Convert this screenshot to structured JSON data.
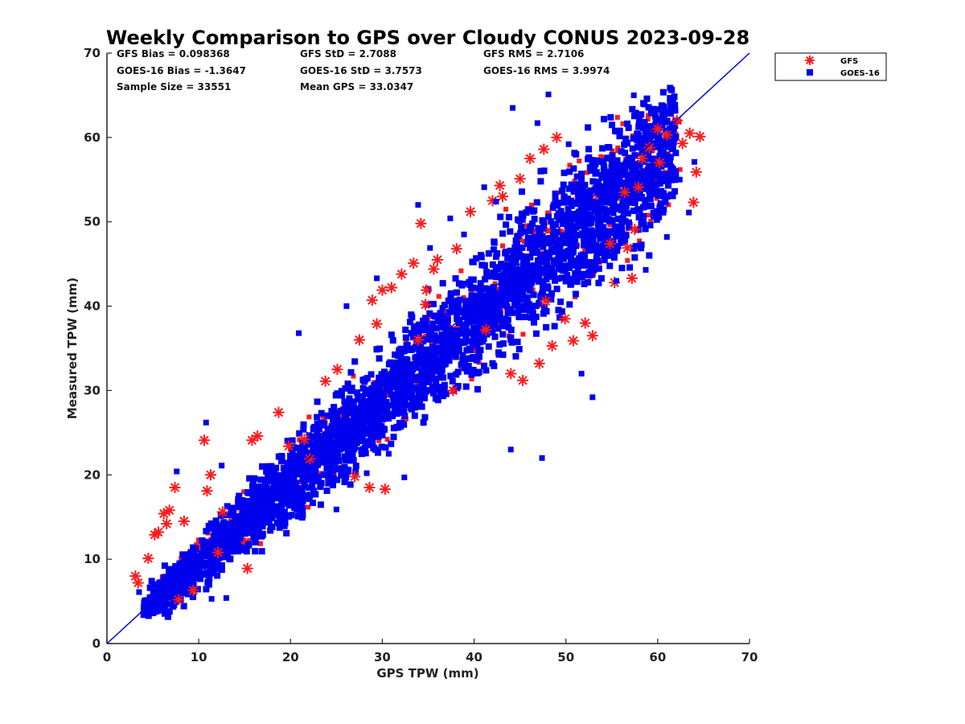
{
  "chart_data": {
    "type": "scatter",
    "title": "Weekly Comparison to GPS over Cloudy CONUS 2023-09-28",
    "xlabel": "GPS TPW (mm)",
    "ylabel": "Measured TPW (mm)",
    "xlim": [
      0,
      70
    ],
    "ylim": [
      0,
      70
    ],
    "xticks": [
      "0",
      "10",
      "20",
      "30",
      "40",
      "50",
      "60",
      "70"
    ],
    "yticks": [
      "0",
      "10",
      "20",
      "30",
      "40",
      "50",
      "60",
      "70"
    ],
    "grid": false,
    "legend_position": "outside-top-right",
    "reference_line": {
      "from": [
        0,
        0
      ],
      "to": [
        70,
        70
      ],
      "color": "#0000dd"
    },
    "stats": {
      "gfs_bias": "GFS Bias = 0.098368",
      "gfs_std": "GFS StD = 2.7088",
      "gfs_rms": "GFS RMS = 2.7106",
      "goes_bias": "GOES-16 Bias = -1.3647",
      "goes_std": "GOES-16 StD = 3.7573",
      "goes_rms": "GOES-16 RMS = 3.9974",
      "sample_size": "Sample Size = 33551",
      "mean_gps": "Mean GPS = 33.0347"
    },
    "series": [
      {
        "name": "GFS",
        "marker": "asterisk",
        "color": "#ff1a1a",
        "points": [
          [
            3.1,
            8.0
          ],
          [
            3.4,
            7.2
          ],
          [
            4.5,
            10.1
          ],
          [
            5.2,
            12.9
          ],
          [
            5.6,
            13.2
          ],
          [
            6.2,
            15.4
          ],
          [
            6.8,
            15.8
          ],
          [
            7.4,
            18.5
          ],
          [
            7.8,
            5.2
          ],
          [
            6.5,
            14.2
          ],
          [
            8.4,
            14.5
          ],
          [
            10.6,
            24.1
          ],
          [
            11.3,
            20.0
          ],
          [
            10.9,
            18.1
          ],
          [
            12.6,
            15.6
          ],
          [
            15.3,
            8.9
          ],
          [
            15.8,
            24.1
          ],
          [
            16.4,
            24.6
          ],
          [
            18.7,
            27.4
          ],
          [
            21.5,
            24.2
          ],
          [
            23.8,
            31.1
          ],
          [
            25.1,
            32.5
          ],
          [
            27.5,
            36.0
          ],
          [
            28.9,
            40.7
          ],
          [
            29.4,
            37.9
          ],
          [
            28.6,
            18.5
          ],
          [
            30.3,
            18.3
          ],
          [
            30.0,
            41.9
          ],
          [
            31.0,
            42.2
          ],
          [
            32.1,
            43.8
          ],
          [
            33.4,
            45.1
          ],
          [
            34.7,
            40.2
          ],
          [
            33.9,
            36.0
          ],
          [
            34.8,
            41.9
          ],
          [
            35.6,
            44.4
          ],
          [
            36.0,
            45.5
          ],
          [
            34.2,
            49.8
          ],
          [
            38.1,
            46.8
          ],
          [
            39.6,
            51.2
          ],
          [
            42.8,
            54.3
          ],
          [
            43.1,
            53.0
          ],
          [
            42.0,
            52.5
          ],
          [
            45.0,
            55.1
          ],
          [
            46.1,
            57.5
          ],
          [
            47.6,
            58.6
          ],
          [
            49.0,
            60.0
          ],
          [
            44.0,
            32.0
          ],
          [
            45.3,
            31.2
          ],
          [
            47.1,
            33.2
          ],
          [
            48.5,
            35.3
          ],
          [
            49.9,
            38.5
          ],
          [
            50.8,
            35.9
          ],
          [
            52.1,
            38.0
          ],
          [
            52.9,
            36.5
          ],
          [
            55.3,
            42.8
          ],
          [
            56.7,
            46.9
          ],
          [
            57.2,
            43.3
          ],
          [
            57.5,
            49.1
          ],
          [
            56.4,
            53.5
          ],
          [
            57.9,
            54.1
          ],
          [
            58.3,
            57.5
          ],
          [
            59.1,
            58.8
          ],
          [
            60.0,
            61.0
          ],
          [
            61.0,
            60.3
          ],
          [
            62.1,
            62.0
          ],
          [
            62.7,
            59.3
          ],
          [
            63.5,
            60.5
          ],
          [
            64.6,
            60.1
          ],
          [
            64.2,
            55.9
          ],
          [
            63.9,
            52.3
          ],
          [
            60.2,
            57.0
          ],
          [
            54.8,
            47.4
          ],
          [
            47.8,
            40.6
          ],
          [
            41.3,
            37.2
          ],
          [
            37.7,
            30.0
          ],
          [
            27.0,
            19.8
          ],
          [
            22.1,
            21.9
          ],
          [
            19.8,
            23.4
          ],
          [
            12.1,
            10.8
          ],
          [
            9.4,
            6.3
          ]
        ]
      },
      {
        "name": "GOES-16",
        "marker": "square",
        "color": "#0000ee",
        "points": [
          [
            10.8,
            26.2
          ],
          [
            20.9,
            36.8
          ],
          [
            7.6,
            20.4
          ],
          [
            12.5,
            21.1
          ],
          [
            44.0,
            23.0
          ],
          [
            47.4,
            22.0
          ],
          [
            51.7,
            32.0
          ],
          [
            52.9,
            29.2
          ],
          [
            48.1,
            65.1
          ],
          [
            57.4,
            65.0
          ],
          [
            59.3,
            63.2
          ],
          [
            61.1,
            62.8
          ],
          [
            44.2,
            63.5
          ],
          [
            63.4,
            51.1
          ],
          [
            61.0,
            48.2
          ],
          [
            35.2,
            46.9
          ],
          [
            29.4,
            43.3
          ],
          [
            26.1,
            40.0
          ],
          [
            28.3,
            20.2
          ],
          [
            32.4,
            19.7
          ],
          [
            30.7,
            22.5
          ],
          [
            25.0,
            15.9
          ],
          [
            15.2,
            11.0
          ],
          [
            13.0,
            5.4
          ],
          [
            11.4,
            5.3
          ],
          [
            5.8,
            4.1
          ],
          [
            4.1,
            5.1
          ],
          [
            3.5,
            6.1
          ],
          [
            64.0,
            57.1
          ],
          [
            62.4,
            55.0
          ],
          [
            58.7,
            44.3
          ],
          [
            55.5,
            43.0
          ],
          [
            54.6,
            46.2
          ],
          [
            50.3,
            59.2
          ],
          [
            46.9,
            61.7
          ],
          [
            38.9,
            48.5
          ],
          [
            37.4,
            50.4
          ],
          [
            42.4,
            52.4
          ],
          [
            41.1,
            54.1
          ],
          [
            33.9,
            52.0
          ]
        ]
      }
    ]
  }
}
